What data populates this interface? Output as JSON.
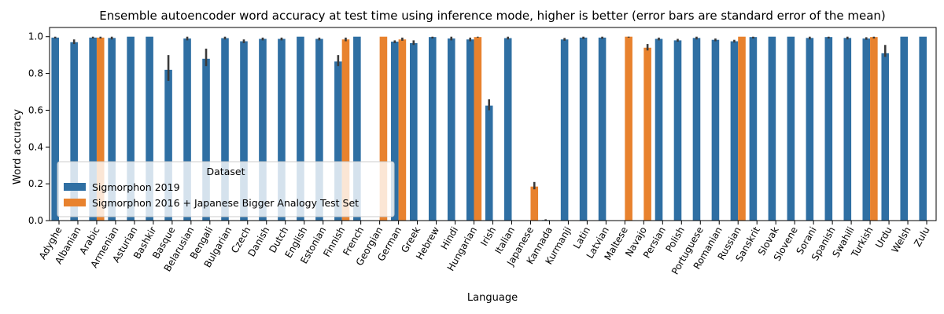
{
  "chart_data": {
    "type": "bar",
    "title": "Ensemble autoencoder word accuracy at test time using inference mode, higher is better (error bars are standard error of the mean)",
    "xlabel": "Language",
    "ylabel": "Word accuracy",
    "ylim": [
      0,
      1.05
    ],
    "yticks": [
      0.0,
      0.2,
      0.4,
      0.6,
      0.8,
      1.0
    ],
    "legend": {
      "title": "Dataset",
      "placement": "lower-left"
    },
    "categories": [
      "Adyghe",
      "Albanian",
      "Arabic",
      "Armenian",
      "Asturian",
      "Bashkir",
      "Basque",
      "Belarusian",
      "Bengali",
      "Bulgarian",
      "Czech",
      "Danish",
      "Dutch",
      "English",
      "Estonian",
      "Finnish",
      "French",
      "Georgian",
      "German",
      "Greek",
      "Hebrew",
      "Hindi",
      "Hungarian",
      "Irish",
      "Italian",
      "Japanese",
      "Kannada",
      "Kurmanji",
      "Latin",
      "Latvian",
      "Maltese",
      "Navajo",
      "Persian",
      "Polish",
      "Portuguese",
      "Romanian",
      "Russian",
      "Sanskrit",
      "Slovak",
      "Slovene",
      "Sorani",
      "Spanish",
      "Swahili",
      "Turkish",
      "Urdu",
      "Welsh",
      "Zulu"
    ],
    "series": [
      {
        "name": "Sigmorphon 2019",
        "color": "#2f6fa3",
        "values": [
          0.995,
          0.97,
          0.995,
          0.993,
          1.0,
          1.0,
          0.82,
          0.99,
          0.88,
          0.992,
          0.975,
          0.988,
          0.988,
          1.0,
          0.988,
          0.865,
          1.0,
          null,
          0.973,
          0.965,
          0.998,
          0.99,
          0.985,
          0.625,
          0.992,
          null,
          0.003,
          0.985,
          0.995,
          0.995,
          null,
          null,
          0.988,
          0.98,
          0.993,
          0.983,
          0.975,
          0.998,
          1.0,
          1.0,
          0.993,
          0.998,
          0.993,
          0.99,
          0.91,
          1.0,
          1.0
        ],
        "err_low": [
          0.99,
          0.96,
          0.99,
          0.985,
          1.0,
          1.0,
          0.76,
          0.98,
          0.84,
          0.985,
          0.965,
          0.98,
          0.98,
          1.0,
          0.98,
          0.84,
          1.0,
          null,
          0.965,
          0.955,
          0.99,
          0.98,
          0.975,
          0.6,
          0.985,
          null,
          0.0,
          0.978,
          0.987,
          0.988,
          null,
          null,
          0.98,
          0.973,
          0.985,
          0.975,
          0.968,
          0.99,
          1.0,
          1.0,
          0.985,
          0.99,
          0.985,
          0.983,
          0.89,
          1.0,
          1.0
        ],
        "err_high": [
          1.0,
          0.985,
          1.0,
          1.0,
          1.0,
          1.0,
          0.9,
          1.0,
          0.935,
          1.0,
          0.985,
          0.995,
          0.995,
          1.0,
          0.995,
          0.9,
          1.0,
          null,
          0.98,
          0.98,
          1.0,
          1.0,
          0.995,
          0.66,
          1.0,
          null,
          0.007,
          0.993,
          1.0,
          1.0,
          null,
          null,
          0.995,
          0.988,
          1.0,
          0.99,
          0.983,
          1.0,
          1.0,
          1.0,
          1.0,
          1.0,
          1.0,
          0.997,
          0.955,
          1.0,
          1.0
        ]
      },
      {
        "name": "Sigmorphon 2016 + Japanese Bigger Analogy Test Set",
        "color": "#e8822e",
        "values": [
          null,
          null,
          0.995,
          null,
          null,
          null,
          null,
          null,
          null,
          null,
          null,
          null,
          null,
          null,
          null,
          0.985,
          null,
          1.0,
          0.985,
          null,
          null,
          null,
          0.998,
          null,
          null,
          0.185,
          null,
          null,
          null,
          null,
          1.0,
          0.94,
          null,
          null,
          null,
          null,
          1.0,
          null,
          null,
          null,
          null,
          null,
          null,
          0.998,
          null,
          null,
          null
        ],
        "err_low": [
          null,
          null,
          0.99,
          null,
          null,
          null,
          null,
          null,
          null,
          null,
          null,
          null,
          null,
          null,
          null,
          0.975,
          null,
          1.0,
          0.978,
          null,
          null,
          null,
          0.995,
          null,
          null,
          0.17,
          null,
          null,
          null,
          null,
          0.995,
          0.925,
          null,
          null,
          null,
          null,
          1.0,
          null,
          null,
          null,
          null,
          null,
          null,
          0.99,
          null,
          null,
          null
        ],
        "err_high": [
          null,
          null,
          1.0,
          null,
          null,
          null,
          null,
          null,
          null,
          null,
          null,
          null,
          null,
          null,
          null,
          0.995,
          null,
          1.0,
          0.995,
          null,
          null,
          null,
          1.0,
          null,
          null,
          0.21,
          null,
          null,
          null,
          null,
          1.0,
          0.96,
          null,
          null,
          null,
          null,
          1.0,
          null,
          null,
          null,
          null,
          null,
          null,
          1.0,
          null,
          null,
          null
        ]
      }
    ]
  }
}
